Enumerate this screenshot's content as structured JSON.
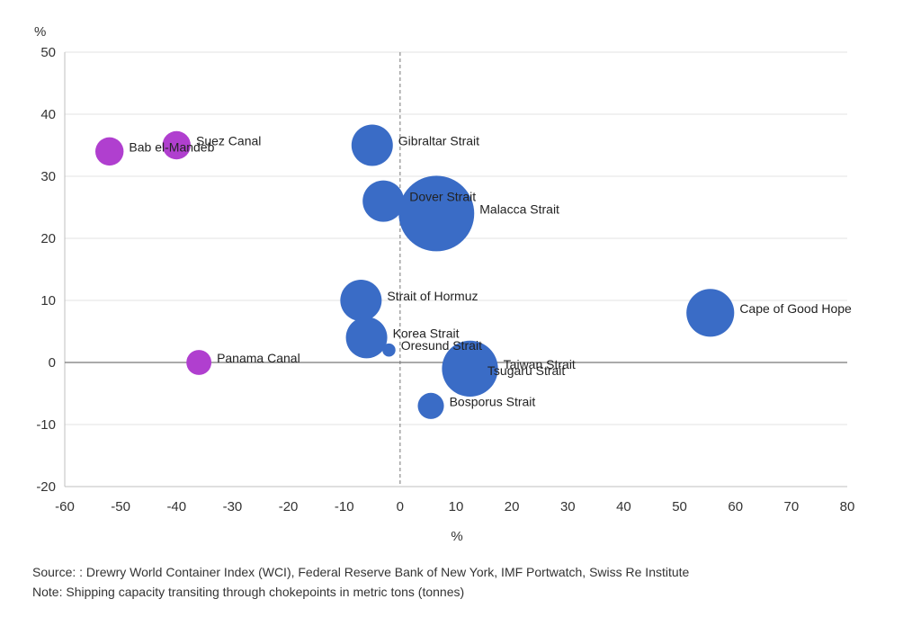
{
  "chart_data": {
    "type": "scatter",
    "title": "",
    "xlabel": "%",
    "ylabel": "%",
    "xlim": [
      -60,
      80
    ],
    "ylim": [
      -20,
      50
    ],
    "xticks": [
      -60,
      -50,
      -40,
      -30,
      -20,
      -10,
      0,
      10,
      20,
      30,
      40,
      50,
      60,
      70,
      80
    ],
    "yticks": [
      -20,
      -10,
      0,
      10,
      20,
      30,
      40,
      50
    ],
    "grid": "horizontal",
    "bubble_size_meaning": "Shipping capacity transiting through chokepoints in metric tons (tonnes)",
    "colors": {
      "canal": "#b03fcf",
      "strait": "#3a6cc6"
    },
    "points": [
      {
        "label": "Bab el-Mandeb",
        "x": -52,
        "y": 34,
        "size": 0.14,
        "group": "canal"
      },
      {
        "label": "Suez Canal",
        "x": -40,
        "y": 35,
        "size": 0.14,
        "group": "canal"
      },
      {
        "label": "Panama Canal",
        "x": -36,
        "y": 0,
        "size": 0.11,
        "group": "canal"
      },
      {
        "label": "Gibraltar Strait",
        "x": -5,
        "y": 35,
        "size": 0.3,
        "group": "strait"
      },
      {
        "label": "Dover Strait",
        "x": -3,
        "y": 26,
        "size": 0.3,
        "group": "strait"
      },
      {
        "label": "Malacca Strait",
        "x": 6.5,
        "y": 24,
        "size": 1.0,
        "group": "strait"
      },
      {
        "label": "Strait of Hormuz",
        "x": -7,
        "y": 10,
        "size": 0.3,
        "group": "strait"
      },
      {
        "label": "Korea Strait",
        "x": -6,
        "y": 4,
        "size": 0.3,
        "group": "strait"
      },
      {
        "label": "Oresund Strait",
        "x": -2,
        "y": 2,
        "size": 0.03,
        "group": "strait"
      },
      {
        "label": "Taiwan Strait",
        "x": 12.5,
        "y": -1,
        "size": 0.55,
        "group": "strait"
      },
      {
        "label": "Tsugaru Strait",
        "x": 13,
        "y": -2,
        "size": 0.06,
        "group": "strait"
      },
      {
        "label": "Bosporus Strait",
        "x": 5.5,
        "y": -7,
        "size": 0.12,
        "group": "strait"
      },
      {
        "label": "Cape of Good Hope",
        "x": 55.5,
        "y": 8,
        "size": 0.4,
        "group": "strait"
      }
    ]
  },
  "footnotes": {
    "source": "Source: : Drewry World Container Index (WCI), Federal Reserve Bank of New York, IMF Portwatch, Swiss Re Institute",
    "note": "Note: Shipping capacity transiting through chokepoints in metric tons (tonnes)"
  }
}
